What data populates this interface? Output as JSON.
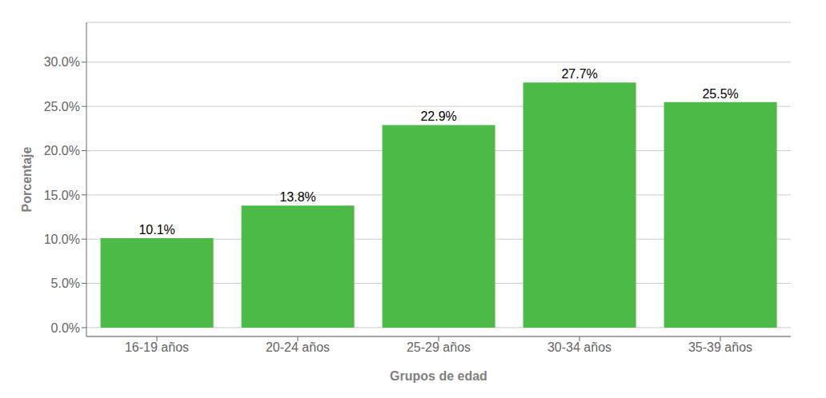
{
  "chart_data": {
    "type": "bar",
    "categories": [
      "16-19 años",
      "20-24 años",
      "25-29 años",
      "30-34 años",
      "35-39 años"
    ],
    "values": [
      10.1,
      13.8,
      22.9,
      27.7,
      25.5
    ],
    "value_labels": [
      "10.1%",
      "13.8%",
      "22.9%",
      "27.7%",
      "25.5%"
    ],
    "data_labels": true,
    "color": "#4CBB47",
    "xlabel": "Grupos de edad",
    "ylabel": "Porcentaje",
    "ylim": [
      -1.0,
      34.5
    ],
    "yticks": [
      {
        "value": 0,
        "label": "0.0%"
      },
      {
        "value": 5,
        "label": "5.0%"
      },
      {
        "value": 10,
        "label": "10.0%"
      },
      {
        "value": 15,
        "label": "15.0%"
      },
      {
        "value": 20,
        "label": "20.0%"
      },
      {
        "value": 25,
        "label": "25.0%"
      },
      {
        "value": 30,
        "label": "30.0%"
      }
    ],
    "grid": true
  }
}
